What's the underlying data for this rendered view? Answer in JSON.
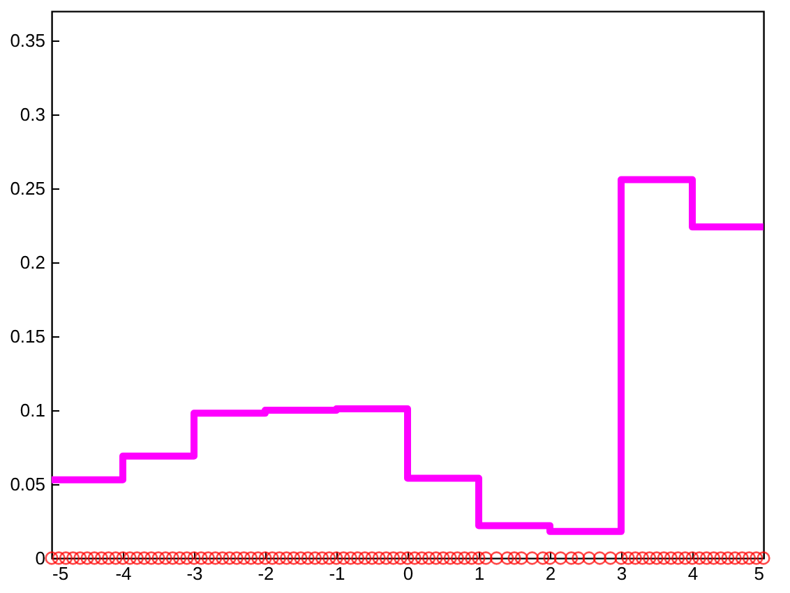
{
  "chart_data": {
    "type": "step",
    "xlim": [
      -5,
      5
    ],
    "ylim": [
      0,
      0.37
    ],
    "xticks": [
      -5,
      -4,
      -3,
      -2,
      -1,
      0,
      1,
      2,
      3,
      4,
      5
    ],
    "yticks": [
      0,
      0.05,
      0.1,
      0.15,
      0.2,
      0.25,
      0.3,
      0.35
    ],
    "grid": false,
    "series": [
      {
        "color": "#ff00ff",
        "x": [
          -5,
          -4,
          -3,
          -2,
          -1,
          0,
          1,
          2,
          3,
          4,
          5
        ],
        "values": [
          0.053,
          0.069,
          0.098,
          0.1,
          0.101,
          0.054,
          0.022,
          0.018,
          0.256,
          0.224,
          0.224
        ]
      },
      {
        "type": "scatter",
        "color": "#ff0000",
        "marker": "circle",
        "x": [
          -5,
          -4.9,
          -4.8,
          -4.7,
          -4.6,
          -4.5,
          -4.4,
          -4.3,
          -4.2,
          -4.1,
          -4,
          -3.9,
          -3.8,
          -3.7,
          -3.6,
          -3.5,
          -3.4,
          -3.3,
          -3.2,
          -3.1,
          -3,
          -2.9,
          -2.8,
          -2.7,
          -2.6,
          -2.5,
          -2.4,
          -2.3,
          -2.2,
          -2.1,
          -2,
          -1.9,
          -1.8,
          -1.7,
          -1.6,
          -1.5,
          -1.4,
          -1.3,
          -1.2,
          -1.1,
          -1,
          -0.9,
          -0.8,
          -0.7,
          -0.6,
          -0.5,
          -0.4,
          -0.3,
          -0.2,
          -0.1,
          0,
          0.1,
          0.2,
          0.3,
          0.4,
          0.5,
          0.6,
          0.7,
          0.8,
          0.9,
          1,
          1.1,
          1.25,
          1.4,
          1.5,
          1.6,
          1.75,
          1.9,
          2,
          2.15,
          2.3,
          2.4,
          2.55,
          2.7,
          2.85,
          3,
          3.1,
          3.2,
          3.3,
          3.4,
          3.5,
          3.6,
          3.7,
          3.8,
          3.9,
          4,
          4.1,
          4.2,
          4.3,
          4.4,
          4.5,
          4.6,
          4.7,
          4.8,
          4.9,
          5
        ],
        "values": [
          0,
          0,
          0,
          0,
          0,
          0,
          0,
          0,
          0,
          0,
          0,
          0,
          0,
          0,
          0,
          0,
          0,
          0,
          0,
          0,
          0,
          0,
          0,
          0,
          0,
          0,
          0,
          0,
          0,
          0,
          0,
          0,
          0,
          0,
          0,
          0,
          0,
          0,
          0,
          0,
          0,
          0,
          0,
          0,
          0,
          0,
          0,
          0,
          0,
          0,
          0,
          0,
          0,
          0,
          0,
          0,
          0,
          0,
          0,
          0,
          0,
          0,
          0,
          0,
          0,
          0,
          0,
          0,
          0,
          0,
          0,
          0,
          0,
          0,
          0,
          0,
          0,
          0,
          0,
          0,
          0,
          0,
          0,
          0,
          0,
          0,
          0,
          0,
          0,
          0,
          0,
          0,
          0,
          0,
          0,
          0
        ]
      }
    ]
  }
}
